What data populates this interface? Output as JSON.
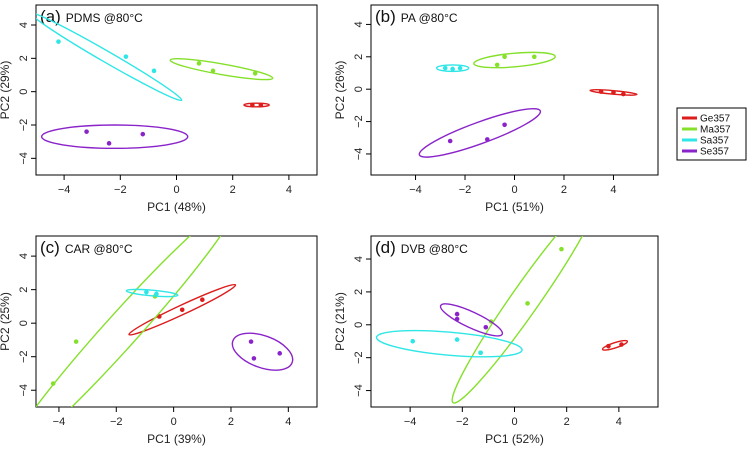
{
  "colors": {
    "Ge357": "#dd1c1c",
    "Ma357": "#84e02a",
    "Sa357": "#2fe6e6",
    "Se357": "#8a24c9"
  },
  "legend": {
    "position": "right",
    "entries": [
      "Ge357",
      "Ma357",
      "Sa357",
      "Se357"
    ]
  },
  "chart_data": [
    {
      "type": "scatter",
      "panel": "(a)",
      "title_rest": "PDMS @80°C",
      "xlabel": "PC1 (48%)",
      "ylabel": "PC2 (29%)",
      "xlim": [
        -5,
        5
      ],
      "ylim": [
        -5,
        5.2
      ],
      "xticks": [
        -4,
        -2,
        0,
        2,
        4
      ],
      "yticks": [
        -4,
        -2,
        0,
        2,
        4
      ],
      "series": [
        {
          "name": "Ge357",
          "points": [
            [
              2.7,
              -0.8
            ],
            [
              3.0,
              -0.8
            ]
          ],
          "ellipse": {
            "cx": 2.85,
            "cy": -0.8,
            "rx": 0.45,
            "ry": 0.11,
            "angle": 0
          }
        },
        {
          "name": "Ma357",
          "points": [
            [
              0.8,
              1.7
            ],
            [
              1.3,
              1.25
            ],
            [
              2.8,
              1.1
            ]
          ],
          "ellipse": {
            "cx": 1.6,
            "cy": 1.35,
            "rx": 1.85,
            "ry": 0.32,
            "angle": -10
          }
        },
        {
          "name": "Sa357",
          "points": [
            [
              -4.2,
              3.0
            ],
            [
              -1.8,
              2.1
            ],
            [
              -0.8,
              1.25
            ]
          ],
          "ellipse": {
            "cx": -2.5,
            "cy": 2.1,
            "rx": 3.1,
            "ry": 0.33,
            "angle": -30
          }
        },
        {
          "name": "Se357",
          "points": [
            [
              -3.2,
              -2.4
            ],
            [
              -2.4,
              -3.1
            ],
            [
              -1.2,
              -2.55
            ]
          ],
          "ellipse": {
            "cx": -2.2,
            "cy": -2.7,
            "rx": 2.6,
            "ry": 0.7,
            "angle": 0
          }
        }
      ]
    },
    {
      "type": "scatter",
      "panel": "(b)",
      "title_rest": "PA @80°C",
      "xlabel": "PC1 (51%)",
      "ylabel": "PC2 (26%)",
      "xlim": [
        -5.8,
        5.8
      ],
      "ylim": [
        -5.3,
        5.2
      ],
      "xticks": [
        -4,
        -2,
        0,
        2,
        4
      ],
      "yticks": [
        -4,
        -2,
        0,
        2,
        4
      ],
      "series": [
        {
          "name": "Ge357",
          "points": [
            [
              3.5,
              -0.15
            ],
            [
              4.0,
              -0.2
            ],
            [
              4.4,
              -0.3
            ]
          ],
          "ellipse": {
            "cx": 4.0,
            "cy": -0.2,
            "rx": 0.95,
            "ry": 0.11,
            "angle": -5
          }
        },
        {
          "name": "Ma357",
          "points": [
            [
              -0.7,
              1.5
            ],
            [
              -0.4,
              2.0
            ],
            [
              0.8,
              2.0
            ]
          ],
          "ellipse": {
            "cx": 0.0,
            "cy": 1.8,
            "rx": 1.65,
            "ry": 0.42,
            "angle": 5
          }
        },
        {
          "name": "Sa357",
          "points": [
            [
              -2.8,
              1.3
            ],
            [
              -2.5,
              1.25
            ],
            [
              -2.2,
              1.3
            ]
          ],
          "ellipse": {
            "cx": -2.5,
            "cy": 1.3,
            "rx": 0.65,
            "ry": 0.2,
            "angle": 0
          }
        },
        {
          "name": "Se357",
          "points": [
            [
              -2.6,
              -3.2
            ],
            [
              -1.1,
              -3.1
            ],
            [
              -0.4,
              -2.2
            ]
          ],
          "ellipse": {
            "cx": -1.4,
            "cy": -2.7,
            "rx": 2.6,
            "ry": 0.66,
            "angle": 20
          }
        }
      ]
    },
    {
      "type": "scatter",
      "panel": "(c)",
      "title_rest": "CAR @80°C",
      "xlabel": "PC1 (39%)",
      "ylabel": "PC2 (25%)",
      "xlim": [
        -4.8,
        5
      ],
      "ylim": [
        -5,
        5.2
      ],
      "xticks": [
        -4,
        -2,
        0,
        2,
        4
      ],
      "yticks": [
        -4,
        -2,
        0,
        2,
        4
      ],
      "series": [
        {
          "name": "Ge357",
          "points": [
            [
              -0.5,
              0.4
            ],
            [
              0.3,
              0.8
            ],
            [
              1.0,
              1.4
            ]
          ],
          "ellipse": {
            "cx": 0.3,
            "cy": 0.8,
            "rx": 2.05,
            "ry": 0.28,
            "angle": 25
          }
        },
        {
          "name": "Ma357",
          "points": [
            [
              -4.2,
              -3.6
            ],
            [
              -3.4,
              -1.1
            ],
            [
              -0.65,
              1.6
            ]
          ],
          "ellipse": {
            "cx": -1.8,
            "cy": -0.4,
            "rx": 6.0,
            "ry": 1.0,
            "angle": 48
          }
        },
        {
          "name": "Sa357",
          "points": [
            [
              -0.95,
              1.85
            ],
            [
              -0.6,
              1.75
            ]
          ],
          "ellipse": {
            "cx": -0.75,
            "cy": 1.8,
            "rx": 0.9,
            "ry": 0.17,
            "angle": -5
          }
        },
        {
          "name": "Se357",
          "points": [
            [
              2.7,
              -1.1
            ],
            [
              2.8,
              -2.1
            ],
            [
              3.7,
              -1.8
            ]
          ],
          "ellipse": {
            "cx": 3.1,
            "cy": -1.7,
            "rx": 1.1,
            "ry": 0.95,
            "angle": -20
          }
        }
      ]
    },
    {
      "type": "scatter",
      "panel": "(d)",
      "title_rest": "DVB @80°C",
      "xlabel": "PC1 (52%)",
      "ylabel": "PC2 (21%)",
      "xlim": [
        -5.5,
        5.5
      ],
      "ylim": [
        -5,
        5.4
      ],
      "xticks": [
        -4,
        -2,
        0,
        2,
        4
      ],
      "yticks": [
        -4,
        -2,
        0,
        2,
        4
      ],
      "series": [
        {
          "name": "Ge357",
          "points": [
            [
              3.6,
              -1.3
            ],
            [
              4.1,
              -1.2
            ]
          ],
          "ellipse": {
            "cx": 3.85,
            "cy": -1.25,
            "rx": 0.5,
            "ry": 0.16,
            "angle": 18
          }
        },
        {
          "name": "Ma357",
          "points": [
            [
              -1.3,
              -1.7
            ],
            [
              -0.9,
              0.2
            ],
            [
              0.5,
              1.3
            ],
            [
              1.8,
              4.6
            ]
          ],
          "ellipse": {
            "cx": 0.4,
            "cy": 1.5,
            "rx": 4.8,
            "ry": 0.85,
            "angle": 55
          }
        },
        {
          "name": "Sa357",
          "points": [
            [
              -3.9,
              -1.0
            ],
            [
              -2.2,
              -0.9
            ],
            [
              -1.3,
              -1.7
            ]
          ],
          "ellipse": {
            "cx": -2.5,
            "cy": -1.15,
            "rx": 2.8,
            "ry": 0.7,
            "angle": -5
          }
        },
        {
          "name": "Se357",
          "points": [
            [
              -2.2,
              0.65
            ],
            [
              -2.2,
              0.35
            ],
            [
              -1.1,
              -0.15
            ]
          ],
          "ellipse": {
            "cx": -1.65,
            "cy": 0.3,
            "rx": 1.3,
            "ry": 0.48,
            "angle": -25
          }
        }
      ]
    }
  ]
}
